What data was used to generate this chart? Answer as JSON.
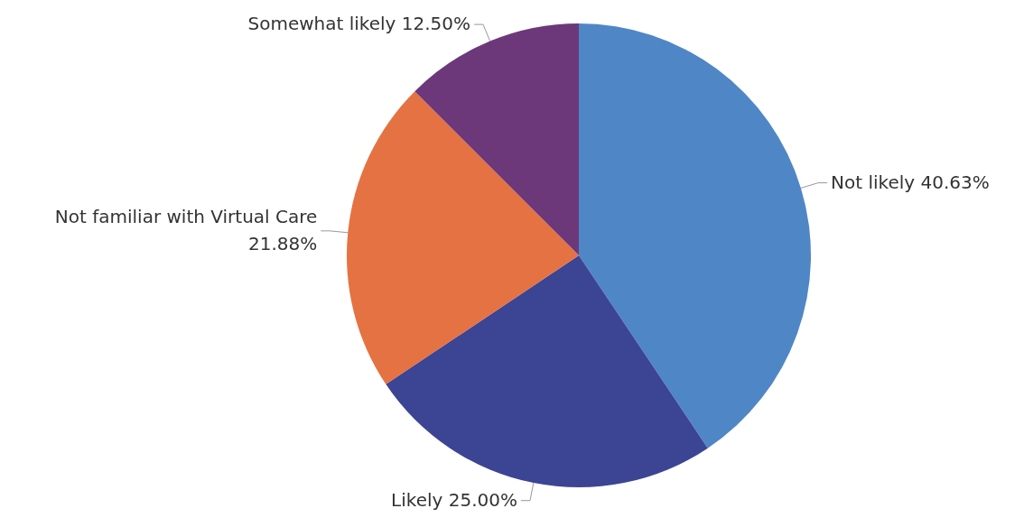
{
  "chart_data": {
    "type": "pie",
    "categories": [
      "Not likely",
      "Likely",
      "Not familiar with Virtual Care",
      "Somewhat likely"
    ],
    "values": [
      40.63,
      25.0,
      21.88,
      12.5
    ],
    "value_labels": [
      "40.63%",
      "25.00%",
      "21.88%",
      "12.50%"
    ],
    "colors": [
      "#4f86c6",
      "#3c4494",
      "#e57242",
      "#6c387a"
    ]
  }
}
